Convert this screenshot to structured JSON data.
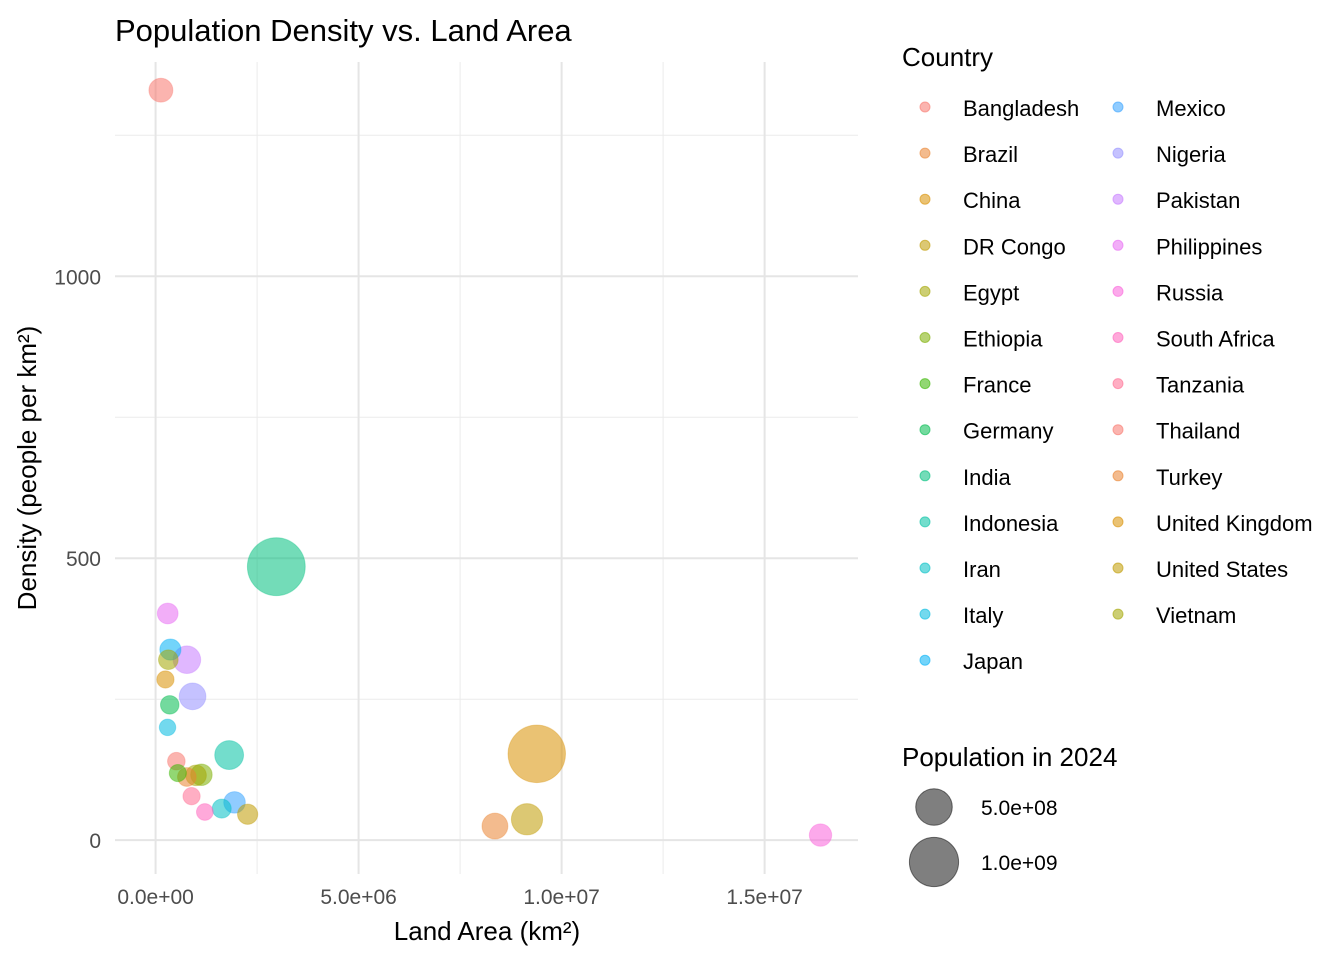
{
  "chart_data": {
    "type": "scatter",
    "title": "Population Density vs. Land Area",
    "xlabel": "Land Area (km²)",
    "ylabel": "Density (people per km²)",
    "xlim": [
      -1000000,
      17300000
    ],
    "ylim": [
      -60,
      1380
    ],
    "x_ticks": [
      0,
      5000000,
      10000000,
      15000000
    ],
    "x_tick_labels": [
      "0.0e+00",
      "5.0e+06",
      "1.0e+07",
      "1.5e+07"
    ],
    "y_ticks": [
      0,
      500,
      1000
    ],
    "y_tick_labels": [
      "0",
      "500",
      "1000"
    ],
    "grid": true,
    "legend_position": "right",
    "color_legend_title": "Country",
    "size_legend_title": "Population in 2024",
    "size_legend": [
      {
        "value": 500000000,
        "label": "5.0e+08"
      },
      {
        "value": 1000000000,
        "label": "1.0e+09"
      }
    ],
    "points": [
      {
        "country": "Bangladesh",
        "color": "#F8766D",
        "x": 130170,
        "y": 1330,
        "pop": 173000000
      },
      {
        "country": "Brazil",
        "color": "#EA8331",
        "x": 8358140,
        "y": 25,
        "pop": 212000000
      },
      {
        "country": "China",
        "color": "#D89000",
        "x": 9388211,
        "y": 153,
        "pop": 1420000000
      },
      {
        "country": "DR Congo",
        "color": "#C09B00",
        "x": 2267050,
        "y": 46,
        "pop": 109000000
      },
      {
        "country": "Egypt",
        "color": "#A3A500",
        "x": 995450,
        "y": 115,
        "pop": 116000000
      },
      {
        "country": "Ethiopia",
        "color": "#7CAE00",
        "x": 1128571,
        "y": 116,
        "pop": 129000000
      },
      {
        "country": "France",
        "color": "#39B600",
        "x": 547557,
        "y": 119,
        "pop": 66000000
      },
      {
        "country": "Germany",
        "color": "#00BB4E",
        "x": 348560,
        "y": 240,
        "pop": 84000000
      },
      {
        "country": "India",
        "color": "#00BF7D",
        "x": 2973190,
        "y": 485,
        "pop": 1440000000
      },
      {
        "country": "Indonesia",
        "color": "#00C1A3",
        "x": 1811570,
        "y": 151,
        "pop": 280000000
      },
      {
        "country": "Iran",
        "color": "#00BFC4",
        "x": 1628550,
        "y": 56,
        "pop": 91000000
      },
      {
        "country": "Italy",
        "color": "#00BAE0",
        "x": 294140,
        "y": 200,
        "pop": 59000000
      },
      {
        "country": "Japan",
        "color": "#00B0F6",
        "x": 364555,
        "y": 338,
        "pop": 123000000
      },
      {
        "country": "Mexico",
        "color": "#35A2FF",
        "x": 1943950,
        "y": 67,
        "pop": 130000000
      },
      {
        "country": "Nigeria",
        "color": "#9590FF",
        "x": 910770,
        "y": 255,
        "pop": 230000000
      },
      {
        "country": "Pakistan",
        "color": "#C77CFF",
        "x": 770880,
        "y": 320,
        "pop": 250000000
      },
      {
        "country": "Philippines",
        "color": "#E76BF3",
        "x": 298170,
        "y": 402,
        "pop": 117000000
      },
      {
        "country": "Russia",
        "color": "#FA62DB",
        "x": 16376870,
        "y": 9,
        "pop": 144000000
      },
      {
        "country": "South Africa",
        "color": "#FF62BC",
        "x": 1213090,
        "y": 50,
        "pop": 62000000
      },
      {
        "country": "Tanzania",
        "color": "#FF6C91",
        "x": 885800,
        "y": 78,
        "pop": 68000000
      },
      {
        "country": "Thailand",
        "color": "#F8766D",
        "x": 510890,
        "y": 140,
        "pop": 72000000
      },
      {
        "country": "Turkey",
        "color": "#EA8331",
        "x": 769630,
        "y": 112,
        "pop": 86000000
      },
      {
        "country": "United Kingdom",
        "color": "#D89000",
        "x": 241930,
        "y": 285,
        "pop": 68000000
      },
      {
        "country": "United States",
        "color": "#C09B00",
        "x": 9147420,
        "y": 37,
        "pop": 342000000
      },
      {
        "country": "Vietnam",
        "color": "#A3A500",
        "x": 313429,
        "y": 320,
        "pop": 100000000
      }
    ]
  }
}
